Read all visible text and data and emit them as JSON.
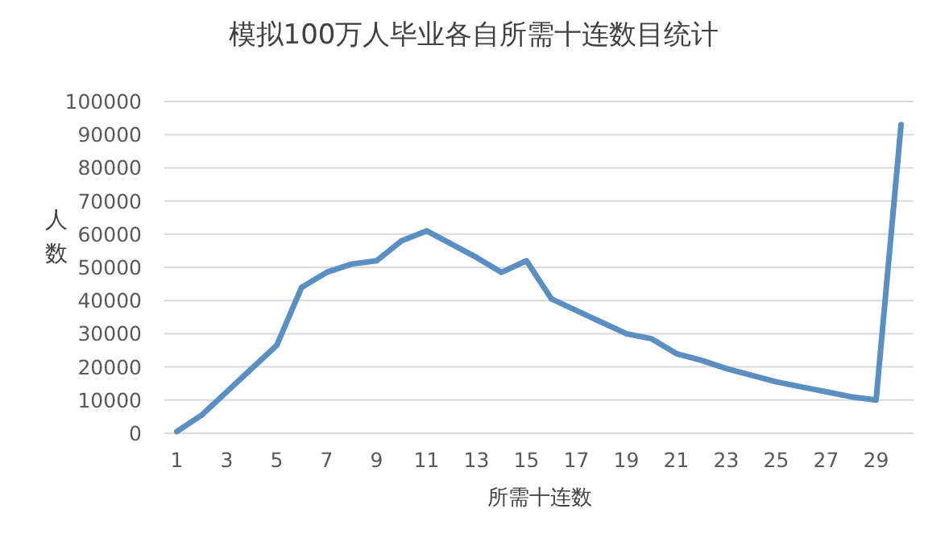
{
  "chart_data": {
    "type": "line",
    "title": "模拟100万人毕业各自所需十连数目统计",
    "xlabel": "所需十连数",
    "ylabel": "人数",
    "x": [
      1,
      2,
      3,
      4,
      5,
      6,
      7,
      8,
      9,
      10,
      11,
      12,
      13,
      14,
      15,
      16,
      17,
      18,
      19,
      20,
      21,
      22,
      23,
      24,
      25,
      26,
      27,
      28,
      29,
      30
    ],
    "values": [
      500,
      5500,
      12500,
      19500,
      26500,
      44000,
      48500,
      51000,
      52000,
      58000,
      61000,
      57000,
      53000,
      48500,
      52000,
      40500,
      37000,
      33500,
      30000,
      28500,
      24000,
      22000,
      19500,
      17500,
      15500,
      14000,
      12500,
      11000,
      10000,
      93000
    ],
    "color": "#5b8fc2",
    "xlim": [
      0.5,
      30.5
    ],
    "xticks": [
      1,
      3,
      5,
      7,
      9,
      11,
      13,
      15,
      17,
      19,
      21,
      23,
      25,
      27,
      29
    ],
    "ylim": [
      0,
      100000
    ],
    "yticks": [
      0,
      10000,
      20000,
      30000,
      40000,
      50000,
      60000,
      70000,
      80000,
      90000,
      100000
    ],
    "grid": "y"
  }
}
